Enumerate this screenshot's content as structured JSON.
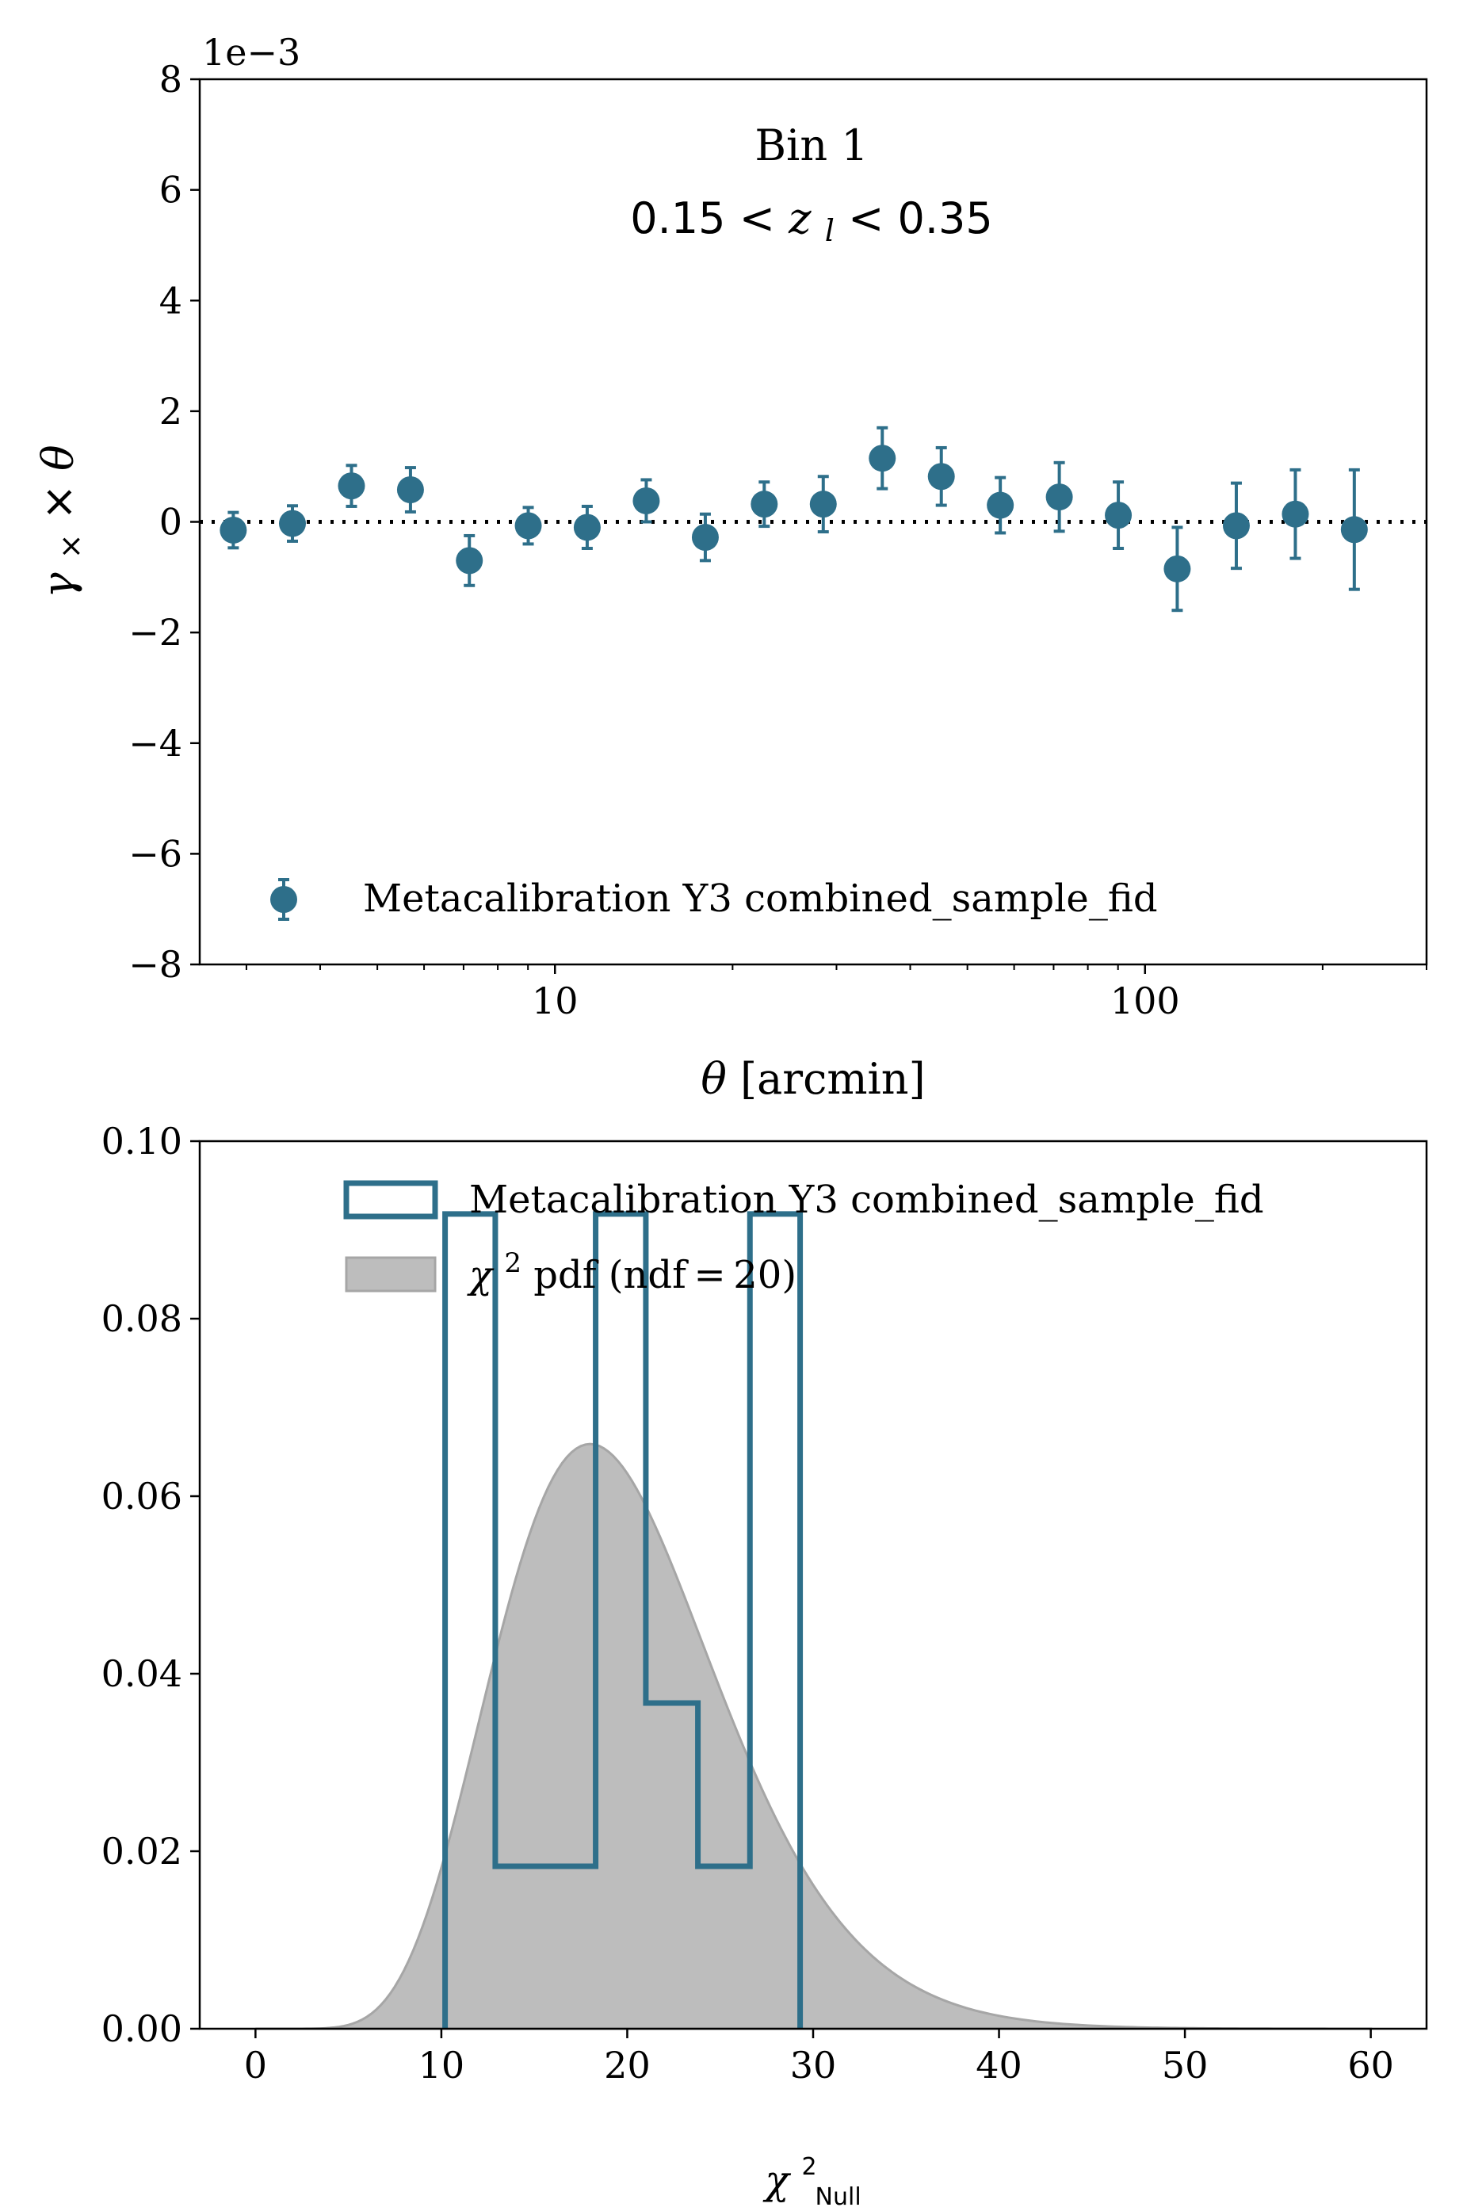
{
  "colors": {
    "series": "#2e6f8a",
    "pdf_fill": "#bdbdbd",
    "pdf_edge": "#a6a6a6",
    "axis": "#000000"
  },
  "chart_data": [
    {
      "type": "scatter",
      "subtype": "errorbar",
      "annotation_line1": "Bin 1",
      "annotation_line2": {
        "lo": "0.15",
        "var": "z",
        "sub": "l",
        "hi": "0.35"
      },
      "offset_label": "1e−3",
      "ylabel": {
        "a": "γ",
        "sub": "×",
        "b": " × ",
        "c": "θ"
      },
      "xlabel": {
        "sym": "θ",
        "unit": " [arcmin]"
      },
      "xscale": "log",
      "xlim": [
        2.5,
        300
      ],
      "ylim": [
        -8,
        8
      ],
      "yscale_factor": 0.001,
      "yticks": [
        8,
        6,
        4,
        2,
        0,
        -2,
        -4,
        -6,
        -8
      ],
      "ytick_labels": [
        "8",
        "6",
        "4",
        "2",
        "0",
        "−2",
        "−4",
        "−6",
        "−8"
      ],
      "xticks_major": [
        10,
        100
      ],
      "xtick_labels": [
        "10",
        "100"
      ],
      "reference_line": {
        "y": 0,
        "style": "dotted"
      },
      "legend": {
        "label": "Metacalibration Y3 combined_sample_fid",
        "loc": "lower center"
      },
      "series": [
        {
          "name": "Metacalibration Y3 combined_sample_fid",
          "x": [
            2.85,
            3.59,
            4.52,
            5.69,
            7.16,
            9.01,
            11.34,
            14.28,
            17.98,
            22.63,
            28.49,
            35.87,
            45.16,
            56.85,
            71.57,
            90.1,
            113.4,
            142.8,
            179.8,
            226.3
          ],
          "y": [
            -0.15,
            -0.03,
            0.65,
            0.58,
            -0.7,
            -0.07,
            -0.1,
            0.38,
            -0.28,
            0.32,
            0.32,
            1.15,
            0.82,
            0.3,
            0.45,
            0.12,
            -0.85,
            -0.07,
            0.14,
            -0.14
          ],
          "yerr": [
            0.32,
            0.32,
            0.37,
            0.4,
            0.45,
            0.33,
            0.38,
            0.38,
            0.42,
            0.4,
            0.5,
            0.55,
            0.52,
            0.5,
            0.62,
            0.6,
            0.75,
            0.77,
            0.8,
            1.08
          ]
        }
      ]
    },
    {
      "type": "area",
      "subtype": "histogram+pdf",
      "xlabel": {
        "sym": "χ",
        "sup": "2",
        "sub": "Null"
      },
      "xlim": [
        -3,
        63
      ],
      "ylim": [
        0,
        0.1
      ],
      "xticks": [
        0,
        10,
        20,
        30,
        40,
        50,
        60
      ],
      "xtick_labels": [
        "0",
        "10",
        "20",
        "30",
        "40",
        "50",
        "60"
      ],
      "yticks": [
        0.1,
        0.08,
        0.06,
        0.04,
        0.02,
        0.0
      ],
      "ytick_labels": [
        "0.10",
        "0.08",
        "0.06",
        "0.04",
        "0.02",
        "0.00"
      ],
      "legend": {
        "hist_label": "Metacalibration Y3 combined_sample_fid",
        "pdf_label": {
          "sym": "χ",
          "sup": "2",
          "rest": " pdf (ndf = 20)"
        },
        "loc": "upper right"
      },
      "histogram": {
        "name": "Metacalibration Y3 combined_sample_fid",
        "bin_edges": [
          10.2,
          12.9,
          18.3,
          21.0,
          23.8,
          26.6,
          29.3
        ],
        "heights": [
          0.0918,
          0.0183,
          0.0918,
          0.0367,
          0.0183,
          0.0918
        ]
      },
      "pdf": {
        "name": "chi2 pdf",
        "ndf": 20,
        "peak_x": 18,
        "peak_y": 0.066
      }
    }
  ]
}
